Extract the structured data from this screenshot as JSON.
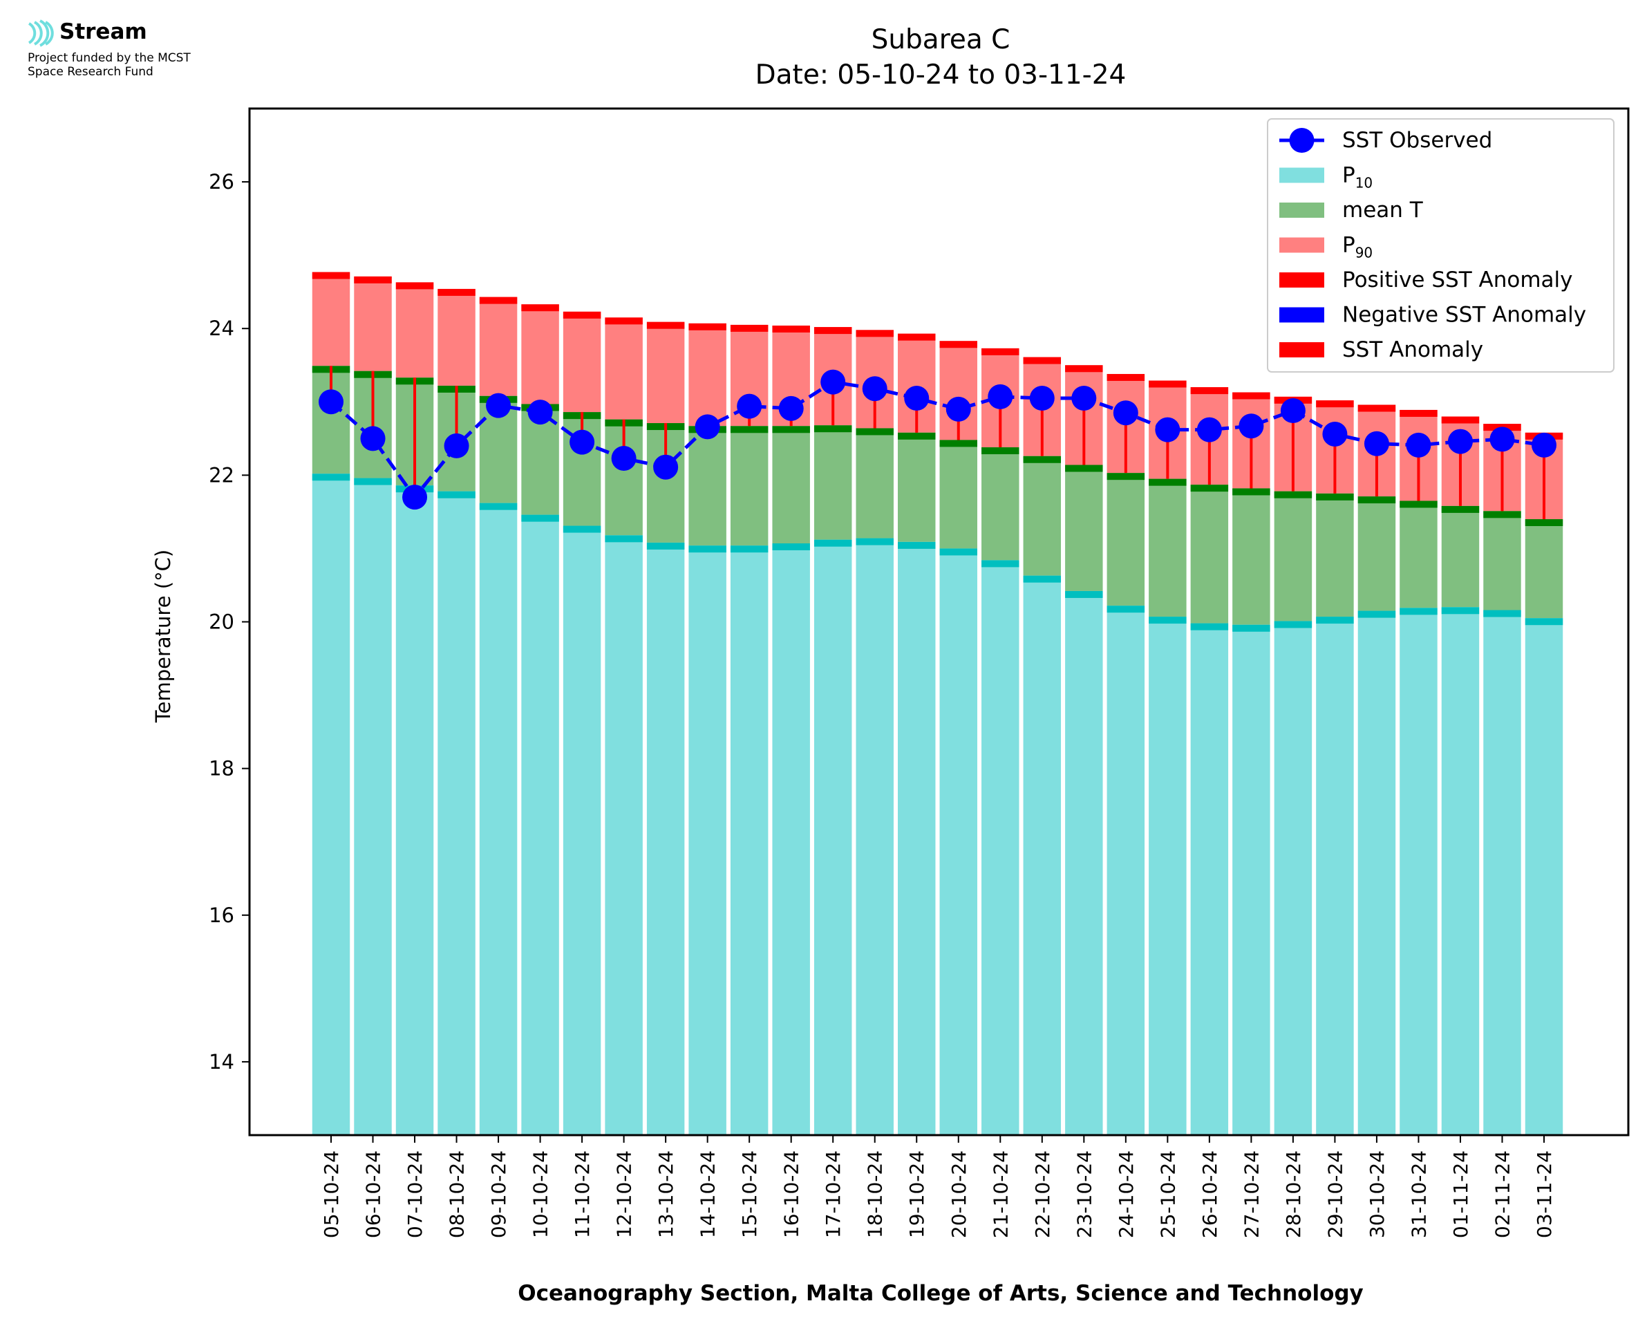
{
  "logo": {
    "name": "Stream",
    "line1": "Project funded by the MCST",
    "line2": "Space Research Fund",
    "icon": "stream-waves-icon"
  },
  "chart_data": {
    "type": "bar",
    "title": "Subarea C",
    "subtitle": "Date: 05-10-24 to 03-11-24",
    "xlabel": "Oceanography Section, Malta College of Arts, Science and Technology",
    "ylabel": "Temperature (°C)",
    "ylim": [
      13,
      27
    ],
    "yticks": [
      14,
      16,
      18,
      20,
      22,
      24,
      26
    ],
    "grid": false,
    "legend_position": "top-right",
    "legend": [
      {
        "label": "SST Observed",
        "kind": "line-marker",
        "color": "#0000ff"
      },
      {
        "label": "P",
        "sub": "10",
        "kind": "patch",
        "color": "#80dfdf"
      },
      {
        "label": "mean T",
        "kind": "patch",
        "color": "#80bf80"
      },
      {
        "label": "P",
        "sub": "90",
        "kind": "patch",
        "color": "#ff8080"
      },
      {
        "label": "Positive SST Anomaly",
        "kind": "patch",
        "color": "#ff0000"
      },
      {
        "label": "Negative SST Anomaly",
        "kind": "patch",
        "color": "#0000ff"
      },
      {
        "label": "SST Anomaly",
        "kind": "patch",
        "color": "#ff0000"
      }
    ],
    "colors": {
      "p10": "#80dfdf",
      "p10_cap": "#00bfbf",
      "mean": "#80bf80",
      "mean_cap": "#007f00",
      "p90": "#ff8080",
      "p90_cap": "#ff0000",
      "observed": "#0000ff",
      "anomaly": "#ff0000"
    },
    "categories": [
      "05-10-24",
      "06-10-24",
      "07-10-24",
      "08-10-24",
      "09-10-24",
      "10-10-24",
      "11-10-24",
      "12-10-24",
      "13-10-24",
      "14-10-24",
      "15-10-24",
      "16-10-24",
      "17-10-24",
      "18-10-24",
      "19-10-24",
      "20-10-24",
      "21-10-24",
      "22-10-24",
      "23-10-24",
      "24-10-24",
      "25-10-24",
      "26-10-24",
      "27-10-24",
      "28-10-24",
      "29-10-24",
      "30-10-24",
      "31-10-24",
      "01-11-24",
      "02-11-24",
      "03-11-24"
    ],
    "series": [
      {
        "name": "P10",
        "values": [
          22.02,
          21.96,
          21.86,
          21.78,
          21.62,
          21.46,
          21.31,
          21.18,
          21.08,
          21.04,
          21.04,
          21.07,
          21.12,
          21.14,
          21.09,
          21.0,
          20.84,
          20.63,
          20.42,
          20.22,
          20.07,
          19.98,
          19.96,
          20.01,
          20.07,
          20.15,
          20.19,
          20.2,
          20.16,
          20.05
        ]
      },
      {
        "name": "mean T",
        "values": [
          23.49,
          23.42,
          23.33,
          23.22,
          23.08,
          22.97,
          22.86,
          22.76,
          22.71,
          22.67,
          22.67,
          22.67,
          22.68,
          22.64,
          22.58,
          22.48,
          22.38,
          22.26,
          22.14,
          22.03,
          21.95,
          21.87,
          21.82,
          21.78,
          21.75,
          21.71,
          21.65,
          21.58,
          21.51,
          21.4
        ]
      },
      {
        "name": "P90",
        "values": [
          24.77,
          24.71,
          24.63,
          24.54,
          24.43,
          24.33,
          24.23,
          24.15,
          24.09,
          24.07,
          24.05,
          24.04,
          24.02,
          23.98,
          23.93,
          23.83,
          23.73,
          23.61,
          23.5,
          23.38,
          23.29,
          23.2,
          23.13,
          23.07,
          23.02,
          22.96,
          22.89,
          22.8,
          22.7,
          22.58
        ]
      },
      {
        "name": "SST Observed",
        "values": [
          23.0,
          22.5,
          21.7,
          22.4,
          22.95,
          22.86,
          22.45,
          22.23,
          22.11,
          22.66,
          22.94,
          22.91,
          23.27,
          23.18,
          23.05,
          22.9,
          23.07,
          23.05,
          23.05,
          22.85,
          22.62,
          22.62,
          22.67,
          22.88,
          22.56,
          22.43,
          22.41,
          22.46,
          22.49,
          22.41
        ]
      }
    ]
  }
}
